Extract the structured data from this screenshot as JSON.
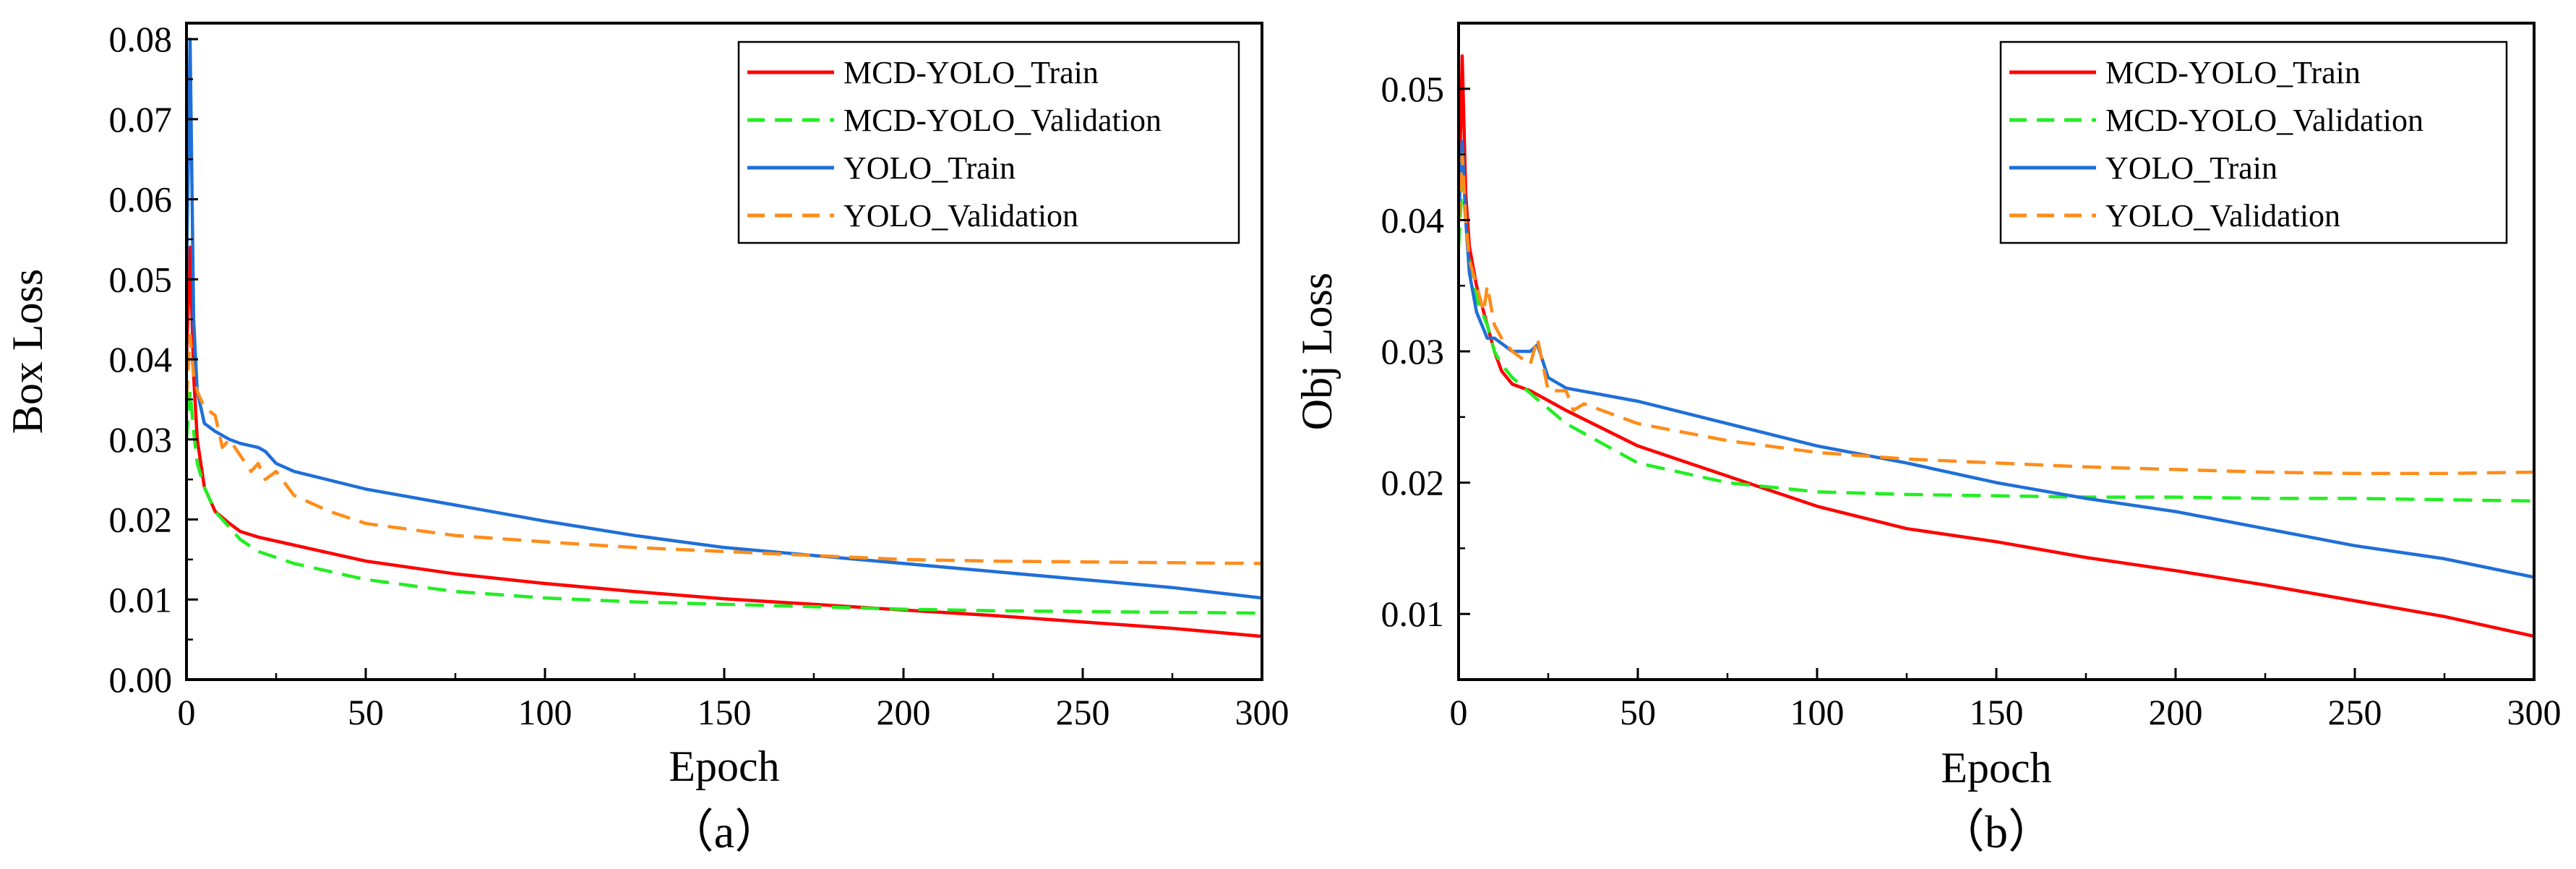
{
  "chart_data": [
    {
      "type": "line",
      "caption": "（a）",
      "xlabel": "Epoch",
      "ylabel": "Box Loss",
      "xlim": [
        0,
        300
      ],
      "ylim": [
        0,
        0.082
      ],
      "xticks": [
        "0",
        "50",
        "100",
        "150",
        "200",
        "250",
        "300"
      ],
      "yticks": [
        "0.00",
        "0.01",
        "0.02",
        "0.03",
        "0.04",
        "0.05",
        "0.06",
        "0.07",
        "0.08"
      ],
      "legend_position": "top-right",
      "grid": false,
      "series": [
        {
          "name": "MCD-YOLO_Train",
          "color": "#ff0000",
          "dash": "solid",
          "x": [
            0,
            1,
            2,
            3,
            5,
            8,
            12,
            15,
            20,
            30,
            50,
            75,
            100,
            125,
            150,
            175,
            200,
            225,
            250,
            275,
            300
          ],
          "y": [
            0.04,
            0.054,
            0.038,
            0.03,
            0.024,
            0.021,
            0.0195,
            0.0185,
            0.0178,
            0.0168,
            0.0148,
            0.0132,
            0.012,
            0.011,
            0.0101,
            0.0094,
            0.0087,
            0.008,
            0.0072,
            0.0064,
            0.0054
          ]
        },
        {
          "name": "MCD-YOLO_Validation",
          "color": "#22ee22",
          "dash": "dash",
          "x": [
            0,
            1,
            2,
            3,
            5,
            8,
            12,
            15,
            20,
            30,
            50,
            75,
            100,
            125,
            150,
            175,
            200,
            225,
            250,
            275,
            300
          ],
          "y": [
            0.03,
            0.036,
            0.031,
            0.027,
            0.024,
            0.021,
            0.019,
            0.0175,
            0.016,
            0.0145,
            0.0125,
            0.011,
            0.0102,
            0.0097,
            0.0094,
            0.0091,
            0.0088,
            0.0086,
            0.0085,
            0.0084,
            0.0083
          ]
        },
        {
          "name": "YOLO_Train",
          "color": "#1f6fd8",
          "dash": "solid",
          "x": [
            0,
            1,
            2,
            3,
            5,
            8,
            12,
            15,
            20,
            22,
            25,
            30,
            50,
            75,
            100,
            125,
            150,
            175,
            200,
            225,
            250,
            275,
            300
          ],
          "y": [
            0.05,
            0.08,
            0.045,
            0.036,
            0.032,
            0.031,
            0.03,
            0.0295,
            0.029,
            0.0285,
            0.027,
            0.026,
            0.0238,
            0.0218,
            0.0198,
            0.018,
            0.0165,
            0.0155,
            0.0145,
            0.0135,
            0.0125,
            0.0115,
            0.0102
          ]
        },
        {
          "name": "YOLO_Validation",
          "color": "#ff8c1a",
          "dash": "dash",
          "x": [
            0,
            1,
            2,
            3,
            5,
            8,
            10,
            12,
            15,
            18,
            20,
            22,
            25,
            30,
            35,
            40,
            50,
            75,
            100,
            125,
            150,
            175,
            200,
            225,
            250,
            275,
            300
          ],
          "y": [
            0.035,
            0.043,
            0.038,
            0.036,
            0.034,
            0.033,
            0.029,
            0.03,
            0.028,
            0.026,
            0.027,
            0.025,
            0.026,
            0.023,
            0.022,
            0.021,
            0.0195,
            0.018,
            0.0172,
            0.0165,
            0.016,
            0.0155,
            0.015,
            0.0148,
            0.0147,
            0.0146,
            0.0145
          ]
        }
      ]
    },
    {
      "type": "line",
      "caption": "（b）",
      "xlabel": "Epoch",
      "ylabel": "Obj Loss",
      "xlim": [
        0,
        300
      ],
      "ylim": [
        0.005,
        0.055
      ],
      "xticks": [
        "0",
        "50",
        "100",
        "150",
        "200",
        "250",
        "300"
      ],
      "yticks": [
        "0.01",
        "0.02",
        "0.03",
        "0.04",
        "0.05"
      ],
      "legend_position": "top-right",
      "grid": false,
      "series": [
        {
          "name": "MCD-YOLO_Train",
          "color": "#ff0000",
          "dash": "solid",
          "x": [
            0,
            1,
            2,
            3,
            5,
            8,
            10,
            12,
            15,
            20,
            30,
            50,
            75,
            100,
            125,
            150,
            175,
            200,
            225,
            250,
            275,
            300
          ],
          "y": [
            0.04,
            0.0525,
            0.042,
            0.038,
            0.035,
            0.032,
            0.03,
            0.0285,
            0.0275,
            0.027,
            0.0255,
            0.0228,
            0.0205,
            0.0182,
            0.0165,
            0.0155,
            0.0143,
            0.0133,
            0.0122,
            0.011,
            0.0098,
            0.0083
          ]
        },
        {
          "name": "MCD-YOLO_Validation",
          "color": "#22ee22",
          "dash": "dash",
          "x": [
            0,
            1,
            2,
            3,
            5,
            8,
            10,
            12,
            15,
            20,
            30,
            50,
            75,
            100,
            125,
            150,
            175,
            200,
            225,
            250,
            275,
            300
          ],
          "y": [
            0.038,
            0.043,
            0.04,
            0.037,
            0.034,
            0.032,
            0.03,
            0.029,
            0.028,
            0.0268,
            0.0245,
            0.0215,
            0.02,
            0.0193,
            0.0191,
            0.019,
            0.0189,
            0.0189,
            0.0188,
            0.0188,
            0.0187,
            0.0186
          ]
        },
        {
          "name": "YOLO_Train",
          "color": "#1f6fd8",
          "dash": "solid",
          "x": [
            0,
            1,
            2,
            3,
            5,
            8,
            10,
            15,
            20,
            22,
            25,
            30,
            50,
            75,
            100,
            125,
            150,
            175,
            200,
            225,
            250,
            275,
            300
          ],
          "y": [
            0.04,
            0.046,
            0.04,
            0.036,
            0.033,
            0.031,
            0.031,
            0.03,
            0.03,
            0.0305,
            0.028,
            0.0272,
            0.0262,
            0.0245,
            0.0228,
            0.0215,
            0.02,
            0.0188,
            0.0178,
            0.0165,
            0.0152,
            0.0142,
            0.0128
          ]
        },
        {
          "name": "YOLO_Validation",
          "color": "#ff8c1a",
          "dash": "dash",
          "x": [
            0,
            1,
            2,
            3,
            5,
            7,
            8,
            10,
            12,
            15,
            20,
            22,
            25,
            30,
            32,
            35,
            40,
            50,
            75,
            100,
            125,
            150,
            175,
            200,
            225,
            250,
            275,
            300
          ],
          "y": [
            0.04,
            0.045,
            0.04,
            0.037,
            0.035,
            0.033,
            0.035,
            0.032,
            0.031,
            0.03,
            0.029,
            0.031,
            0.027,
            0.027,
            0.0255,
            0.026,
            0.0255,
            0.0245,
            0.0232,
            0.0223,
            0.0218,
            0.0215,
            0.0212,
            0.021,
            0.0208,
            0.0207,
            0.0207,
            0.0208
          ]
        }
      ]
    }
  ]
}
